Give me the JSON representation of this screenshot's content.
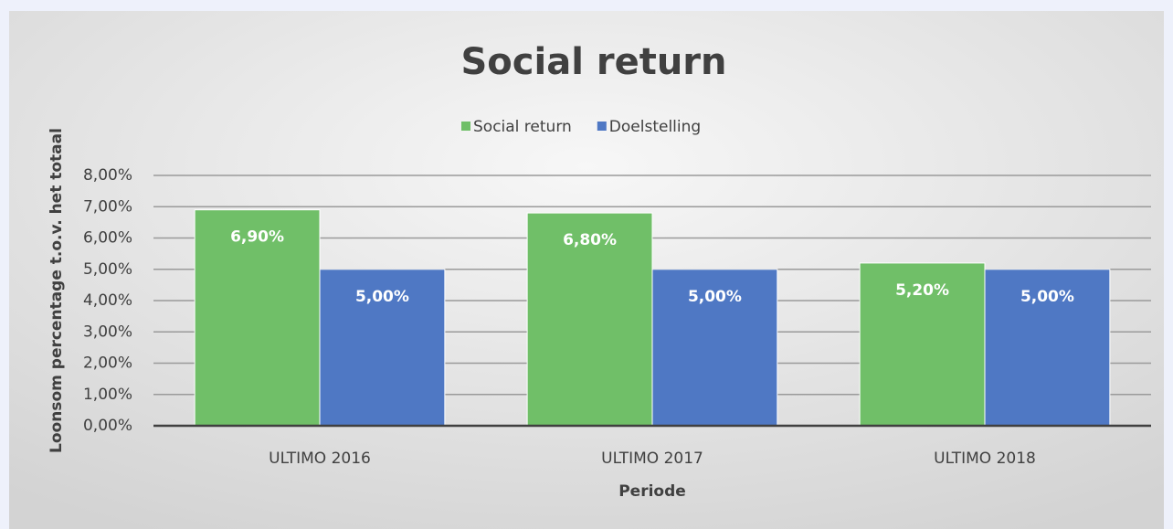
{
  "chart_data": {
    "type": "bar",
    "title": "Social return",
    "categories": [
      "ULTIMO 2016",
      "ULTIMO 2017",
      "ULTIMO 2018"
    ],
    "series": [
      {
        "name": "Social return",
        "color": "#70bf68",
        "values": [
          6.9,
          6.8,
          5.2
        ],
        "value_labels": [
          "6,90%",
          "6,80%",
          "5,20%"
        ]
      },
      {
        "name": "Doelstelling",
        "color": "#4f78c4",
        "values": [
          5.0,
          5.0,
          5.0
        ],
        "value_labels": [
          "5,00%",
          "5,00%",
          "5,00%"
        ]
      }
    ],
    "ylim": [
      0,
      8
    ],
    "yticks": [
      {
        "value": 0,
        "label": "0,00%"
      },
      {
        "value": 1,
        "label": "1,00%"
      },
      {
        "value": 2,
        "label": "2,00%"
      },
      {
        "value": 3,
        "label": "3,00%"
      },
      {
        "value": 4,
        "label": "4,00%"
      },
      {
        "value": 5,
        "label": "5,00%"
      },
      {
        "value": 6,
        "label": "6,00%"
      },
      {
        "value": 7,
        "label": "7,00%"
      },
      {
        "value": 8,
        "label": "8,00%"
      }
    ],
    "y_label": "Loonsom percentage t.o.v. het totaal",
    "x_label": "Periode",
    "grid": true,
    "legend": "top"
  }
}
